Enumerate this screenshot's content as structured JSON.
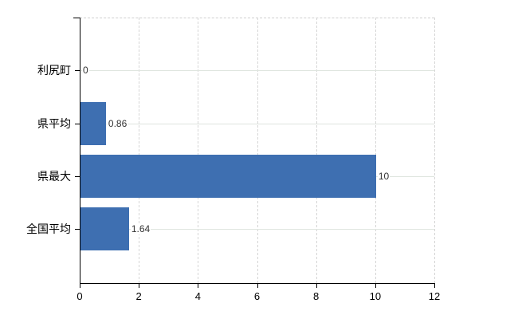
{
  "chart_data": {
    "type": "bar",
    "orientation": "horizontal",
    "title": "",
    "xlabel": "",
    "ylabel": "",
    "categories": [
      "利尻町",
      "県平均",
      "県最大",
      "全国平均"
    ],
    "values": [
      0,
      0.86,
      10,
      1.64
    ],
    "value_labels": [
      "0",
      "0.86",
      "10",
      "1.64"
    ],
    "xlim": [
      0,
      12
    ],
    "x_ticks": [
      0,
      2,
      4,
      6,
      8,
      10,
      12
    ],
    "x_tick_labels": [
      "0",
      "2",
      "4",
      "6",
      "8",
      "10",
      "12"
    ],
    "grid": true,
    "legend": false,
    "colors": {
      "bar": "#3e6fb1",
      "grid_vertical": "#d6d6d6",
      "grid_horizontal": "#dfe5df",
      "axis": "#000000",
      "top_border": "#cfcfcf",
      "category_text": "#000000",
      "value_text": "#333333",
      "background": "#ffffff"
    }
  }
}
